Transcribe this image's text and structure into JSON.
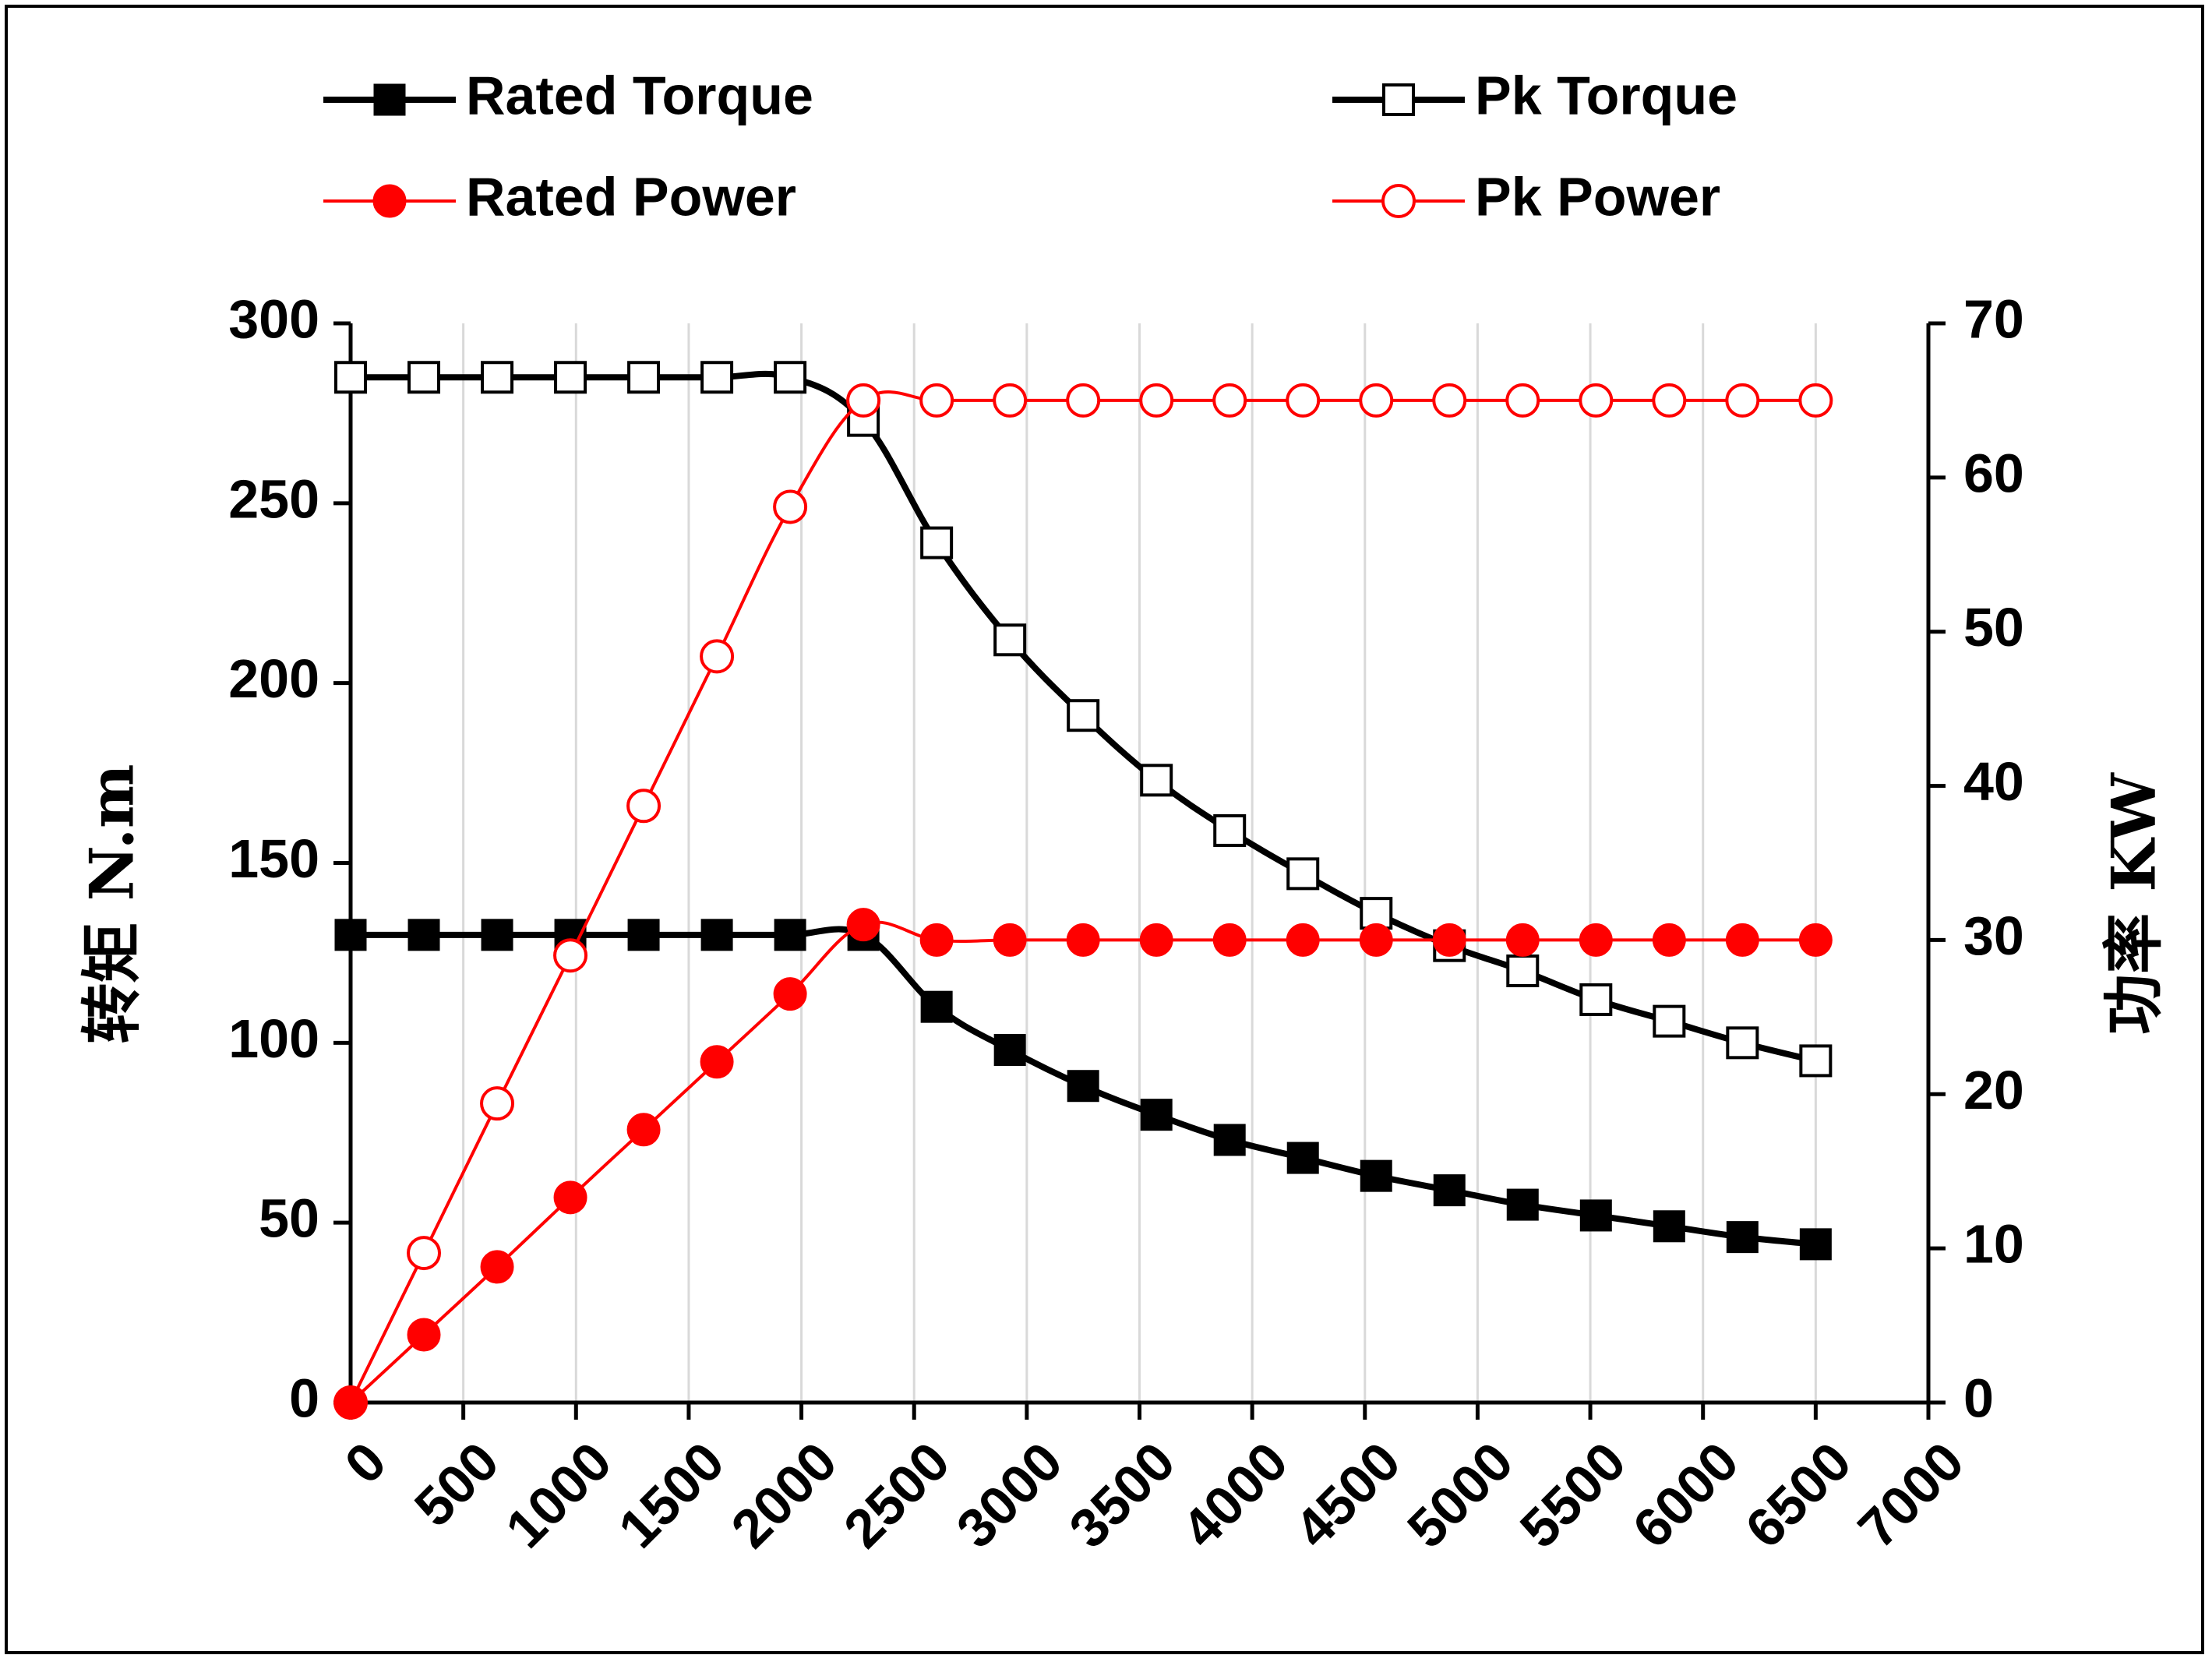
{
  "chart_data": {
    "type": "line",
    "title": "",
    "xlabel": "",
    "ylabel": "转矩 N.m",
    "y2label": "功率 KW",
    "xlim": [
      0,
      7000
    ],
    "ylim": [
      0,
      300
    ],
    "y2lim": [
      0,
      70
    ],
    "x_ticks": [
      0,
      500,
      1000,
      1500,
      2000,
      2500,
      3000,
      3500,
      4000,
      4500,
      5000,
      5500,
      6000,
      6500,
      7000
    ],
    "y_ticks": [
      0,
      50,
      100,
      150,
      200,
      250,
      300
    ],
    "y2_ticks": [
      0,
      10,
      20,
      30,
      40,
      50,
      60,
      70
    ],
    "grid": "vertical",
    "legend_placement": "top",
    "x": [
      0,
      325,
      650,
      975,
      1300,
      1625,
      1950,
      2275,
      2600,
      2925,
      3250,
      3575,
      3900,
      4225,
      4550,
      4875,
      5200,
      5525,
      5850,
      6175,
      6500
    ],
    "series": [
      {
        "name": "Rated Torque",
        "axis": "left",
        "color": "#000000",
        "marker": "filled-square",
        "values": [
          130,
          130,
          130,
          130,
          130,
          130,
          130,
          130,
          110,
          98,
          88,
          80,
          73,
          68,
          63,
          59,
          55,
          52,
          49,
          46,
          44
        ]
      },
      {
        "name": "Pk Torque",
        "axis": "left",
        "color": "#000000",
        "marker": "open-square",
        "values": [
          285,
          285,
          285,
          285,
          285,
          285,
          285,
          273,
          239,
          212,
          191,
          173,
          159,
          147,
          136,
          127,
          120,
          112,
          106,
          100,
          95
        ]
      },
      {
        "name": "Rated Power",
        "axis": "right",
        "color": "#ff0000",
        "marker": "filled-circle",
        "values": [
          0,
          4.4,
          8.8,
          13.3,
          17.7,
          22.1,
          26.5,
          31.0,
          30.0,
          30.0,
          30.0,
          30.0,
          30.0,
          30.0,
          30.0,
          30.0,
          30.0,
          30.0,
          30.0,
          30.0,
          30.0
        ]
      },
      {
        "name": "Pk Power",
        "axis": "right",
        "color": "#ff0000",
        "marker": "open-circle",
        "values": [
          0,
          9.7,
          19.4,
          29.0,
          38.7,
          48.4,
          58.1,
          65.0,
          65.0,
          65.0,
          65.0,
          65.0,
          65.0,
          65.0,
          65.0,
          65.0,
          65.0,
          65.0,
          65.0,
          65.0,
          65.0
        ]
      }
    ]
  }
}
